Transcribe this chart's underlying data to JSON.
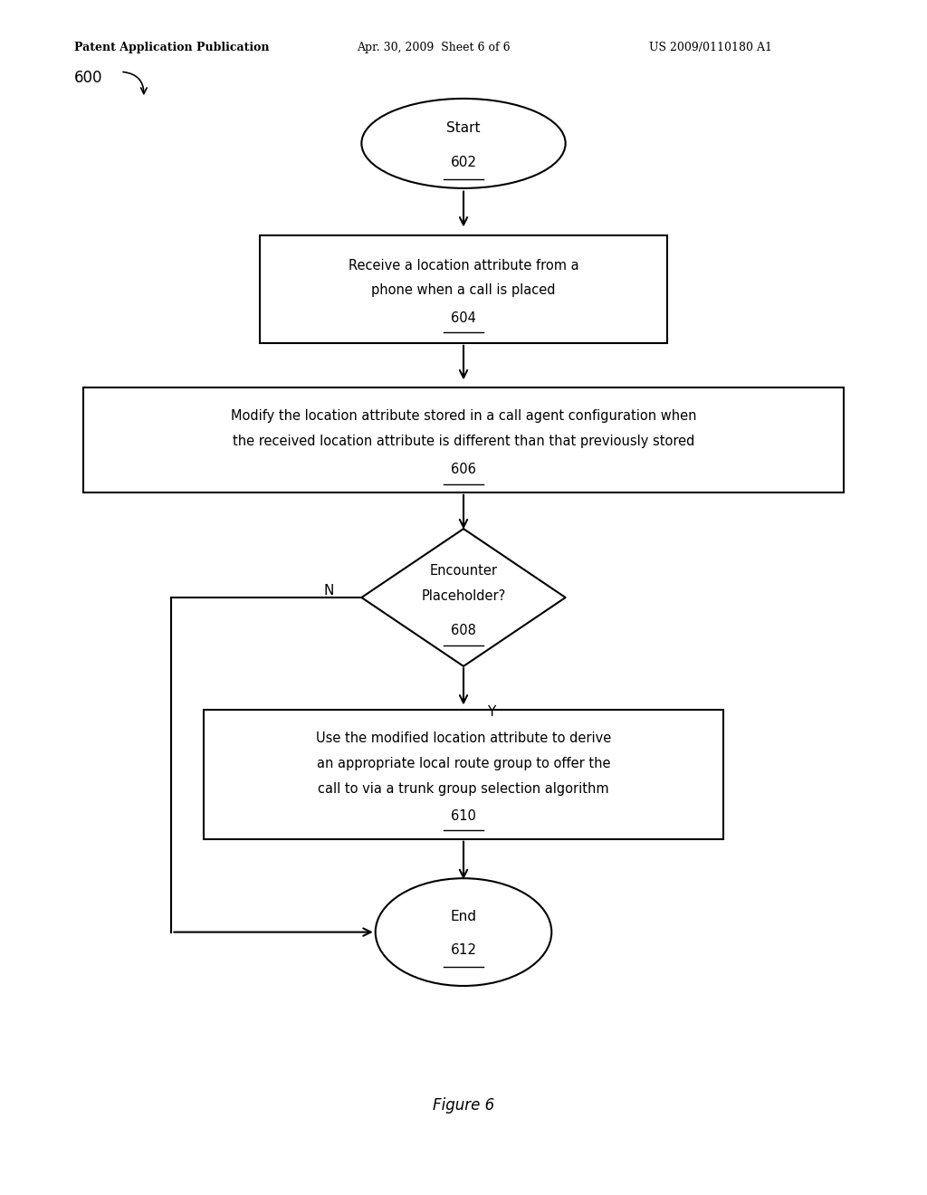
{
  "bg_color": "#ffffff",
  "header_left": "Patent Application Publication",
  "header_mid": "Apr. 30, 2009  Sheet 6 of 6",
  "header_right": "US 2009/0110180 A1",
  "fig_label": "Figure 6",
  "diagram_label": "600"
}
